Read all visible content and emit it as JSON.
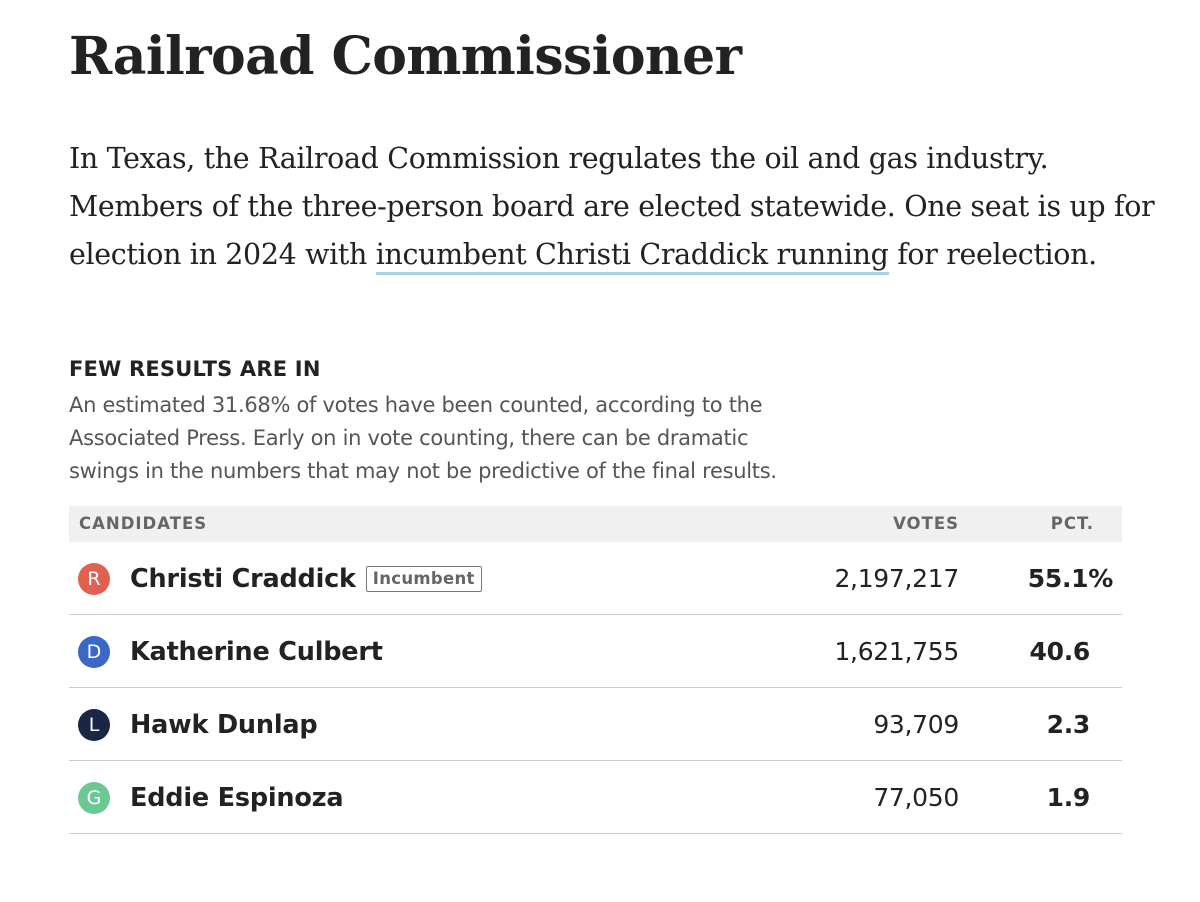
{
  "race": {
    "title": "Railroad Commissioner",
    "intro": {
      "line1": "In Texas, the Railroad Commission regulates the oil and gas industry.",
      "line2": "Members of the three-person board are elected statewide. One seat is up for",
      "line3_before": "election in 2024 with ",
      "line3_link": "incumbent Christi Craddick running",
      "line3_after": " for reelection."
    }
  },
  "status": {
    "heading": "FEW RESULTS ARE IN",
    "note_line1": "An estimated 31.68% of votes have been counted, according to the",
    "note_line2": "Associated Press. Early on in vote counting, there can be dramatic",
    "note_line3": "swings in the numbers that may not be predictive of the final results."
  },
  "table": {
    "headers": {
      "candidates": "CANDIDATES",
      "votes": "VOTES",
      "pct": "PCT."
    },
    "rows": [
      {
        "party": "R",
        "party_color": "#e0614f",
        "name": "Christi Craddick",
        "tag": "Incumbent",
        "votes": "2,197,217",
        "pct": "55.1%"
      },
      {
        "party": "D",
        "party_color": "#3b68c4",
        "name": "Katherine Culbert",
        "votes": "1,621,755",
        "pct": "40.6"
      },
      {
        "party": "L",
        "party_color": "#1b2545",
        "name": "Hawk Dunlap",
        "votes": "93,709",
        "pct": "2.3"
      },
      {
        "party": "G",
        "party_color": "#6cc893",
        "name": "Eddie Espinoza",
        "votes": "77,050",
        "pct": "1.9"
      }
    ]
  }
}
